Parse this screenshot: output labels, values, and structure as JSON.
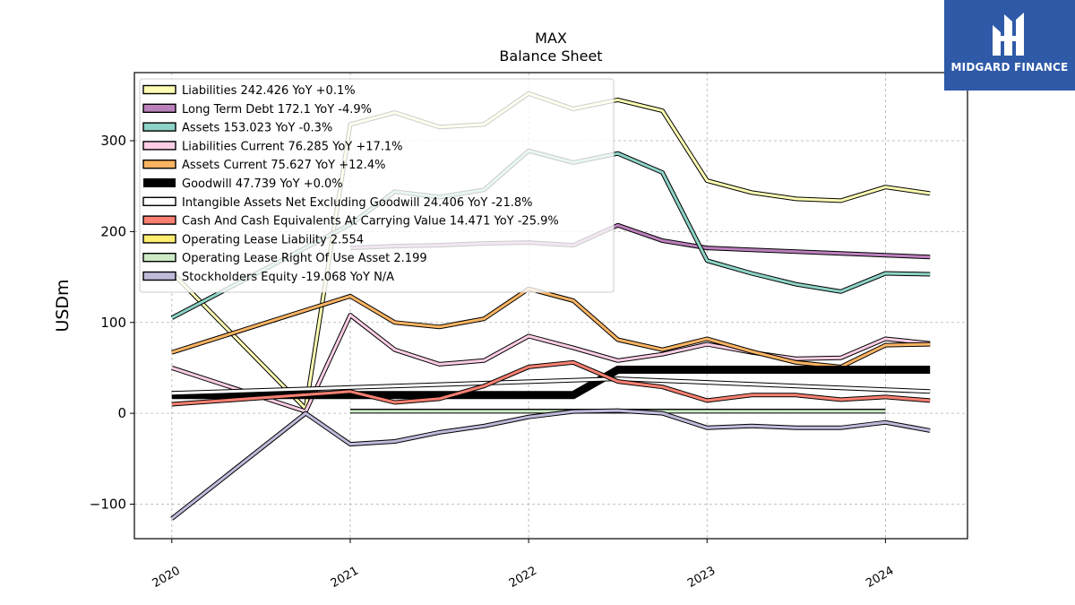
{
  "chart_data": {
    "type": "line",
    "title": "MAX",
    "subtitle": "Balance  Sheet",
    "ylabel": "USDm",
    "xlabel": "",
    "ylim": [
      -138,
      375
    ],
    "xlim": [
      2019.79,
      2024.46
    ],
    "yticks": [
      -100,
      0,
      100,
      200,
      300
    ],
    "ytick_labels": [
      "−100",
      "0",
      "100",
      "200",
      "300"
    ],
    "xticks": [
      2020,
      2021,
      2022,
      2023,
      2024
    ],
    "xtick_labels": [
      "2020",
      "2021",
      "2022",
      "2023",
      "2024"
    ],
    "grid": true,
    "legend_position": "top-left",
    "series": [
      {
        "name": "Liabilities  242.426 YoY +0.1%",
        "color": "#ffffb3",
        "style": "line",
        "x": [
          2020.0,
          2020.75,
          2021.0,
          2021.25,
          2021.5,
          2021.75,
          2022.0,
          2022.25,
          2022.5,
          2022.75,
          2023.0,
          2023.25,
          2023.5,
          2023.75,
          2024.0,
          2024.25
        ],
        "y": [
          155,
          5,
          318,
          331,
          315,
          318,
          352,
          335,
          345,
          333,
          256,
          243,
          236,
          234,
          249,
          242
        ]
      },
      {
        "name": "Long Term Debt  172.1 YoY -4.9%",
        "color": "#bc80bd",
        "style": "line",
        "x": [
          2021.0,
          2021.25,
          2021.5,
          2021.75,
          2022.0,
          2022.25,
          2022.5,
          2022.75,
          2023.0,
          2023.25,
          2023.5,
          2023.75,
          2024.0,
          2024.25
        ],
        "y": [
          182,
          184,
          185,
          187,
          188,
          185,
          207,
          190,
          182,
          180,
          178,
          176,
          174,
          172
        ]
      },
      {
        "name": "Assets  153.023 YoY -0.3%",
        "color": "#8dd3c7",
        "style": "line",
        "x": [
          2020.0,
          2021.0,
          2021.25,
          2021.5,
          2021.75,
          2022.0,
          2022.25,
          2022.5,
          2022.75,
          2023.0,
          2023.25,
          2023.5,
          2023.75,
          2024.0,
          2024.25
        ],
        "y": [
          105,
          208,
          244,
          238,
          246,
          289,
          276,
          286,
          265,
          168,
          154,
          142,
          134,
          154,
          153
        ]
      },
      {
        "name": "Liabilities Current  76.285 YoY +17.1%",
        "color": "#fccde5",
        "style": "line",
        "x": [
          2020.0,
          2020.75,
          2021.0,
          2021.25,
          2021.5,
          2021.75,
          2022.0,
          2022.25,
          2022.5,
          2022.75,
          2023.0,
          2023.25,
          2023.5,
          2023.75,
          2024.0,
          2024.25
        ],
        "y": [
          50,
          2,
          108,
          70,
          54,
          58,
          85,
          72,
          58,
          65,
          76,
          67,
          60,
          61,
          82,
          77
        ]
      },
      {
        "name": "Assets Current  75.627 YoY +12.4%",
        "color": "#fdb462",
        "style": "line",
        "x": [
          2020.0,
          2021.0,
          2021.25,
          2021.5,
          2021.75,
          2022.0,
          2022.25,
          2022.5,
          2022.75,
          2023.0,
          2023.25,
          2023.5,
          2023.75,
          2024.0,
          2024.25
        ],
        "y": [
          67,
          129,
          100,
          95,
          104,
          137,
          124,
          81,
          70,
          82,
          68,
          56,
          51,
          75,
          76
        ]
      },
      {
        "name": "Goodwill  47.739 YoY +0.0%",
        "color": "#000000",
        "style": "thick",
        "x": [
          2020.0,
          2022.25,
          2022.5,
          2022.75,
          2023.0,
          2023.25,
          2023.5,
          2023.75,
          2024.0,
          2024.25
        ],
        "y": [
          20,
          20,
          48,
          48,
          48,
          48,
          48,
          48,
          48,
          48
        ]
      },
      {
        "name": "Intangible Assets Net Excluding Goodwill  24.406 YoY -21.8%",
        "color": "#ffffff",
        "style": "line",
        "x": [
          2020.0,
          2022.5,
          2024.25
        ],
        "y": [
          22,
          38,
          24
        ]
      },
      {
        "name": "Cash And Cash Equivalents At Carrying Value  14.471 YoY -25.9%",
        "color": "#fb8072",
        "style": "line",
        "x": [
          2020.0,
          2021.0,
          2021.25,
          2021.5,
          2021.75,
          2022.0,
          2022.25,
          2022.5,
          2022.75,
          2023.0,
          2023.25,
          2023.5,
          2023.75,
          2024.0,
          2024.25
        ],
        "y": [
          10,
          24,
          12,
          16,
          30,
          51,
          56,
          35,
          29,
          14,
          20,
          20,
          15,
          18,
          14
        ]
      },
      {
        "name": "Operating Lease Liability  2.554",
        "color": "#ffed6f",
        "style": "line",
        "x": [
          2021.0,
          2024.0
        ],
        "y": [
          2.6,
          2.6
        ]
      },
      {
        "name": "Operating Lease Right Of Use Asset  2.199",
        "color": "#ccebc5",
        "style": "line",
        "x": [
          2021.0,
          2024.0
        ],
        "y": [
          2.2,
          2.2
        ]
      },
      {
        "name": "Stockholders Equity  -19.068 YoY N/A",
        "color": "#bebada",
        "style": "line",
        "x": [
          2020.0,
          2020.75,
          2021.0,
          2021.25,
          2021.5,
          2021.75,
          2022.0,
          2022.25,
          2022.5,
          2022.75,
          2023.0,
          2023.25,
          2023.5,
          2023.75,
          2024.0,
          2024.25
        ],
        "y": [
          -116,
          0,
          -34,
          -31,
          -21,
          -14,
          -4,
          2,
          3,
          0,
          -16,
          -14,
          -16,
          -16,
          -10,
          -19
        ]
      }
    ]
  },
  "logo": {
    "text": "MIDGARD FINANCE",
    "icon": "midgard-logo-icon",
    "background": "#2f5aa8"
  }
}
